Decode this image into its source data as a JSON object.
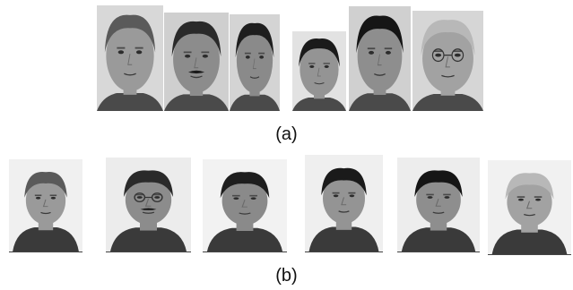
{
  "figure": {
    "panel_a": {
      "caption": "(a)",
      "faces": [
        {
          "subject": 1,
          "hair": "#5a5a5a",
          "skin": "#9a9a9a",
          "bg": "#d8d8d8",
          "mustache": false,
          "glasses": false
        },
        {
          "subject": 2,
          "hair": "#2a2a2a",
          "skin": "#8c8c8c",
          "bg": "#cfcfcf",
          "mustache": true,
          "glasses": false
        },
        {
          "subject": 3,
          "hair": "#1e1e1e",
          "skin": "#8a8a8a",
          "bg": "#d4d4d4",
          "mustache": false,
          "glasses": false
        },
        {
          "subject": 4,
          "hair": "#1a1a1a",
          "skin": "#949494",
          "bg": "#e2e2e2",
          "mustache": false,
          "glasses": false
        },
        {
          "subject": 5,
          "hair": "#151515",
          "skin": "#8e8e8e",
          "bg": "#d0d0d0",
          "mustache": false,
          "glasses": false
        },
        {
          "subject": 6,
          "hair": "#b8b8b8",
          "skin": "#a2a2a2",
          "bg": "#d6d6d6",
          "mustache": false,
          "glasses": true
        }
      ]
    },
    "panel_b": {
      "caption": "(b)",
      "faces": [
        {
          "subject": 1,
          "hair": "#5a5a5a",
          "skin": "#9a9a9a",
          "bg": "#f0f0f0",
          "mustache": false,
          "glasses": false
        },
        {
          "subject": 2,
          "hair": "#2a2a2a",
          "skin": "#8c8c8c",
          "bg": "#ececec",
          "mustache": true,
          "glasses": true
        },
        {
          "subject": 3,
          "hair": "#1e1e1e",
          "skin": "#8a8a8a",
          "bg": "#f2f2f2",
          "mustache": false,
          "glasses": false
        },
        {
          "subject": 4,
          "hair": "#1a1a1a",
          "skin": "#949494",
          "bg": "#efefef",
          "mustache": false,
          "glasses": false
        },
        {
          "subject": 5,
          "hair": "#151515",
          "skin": "#8e8e8e",
          "bg": "#ededed",
          "mustache": false,
          "glasses": false
        },
        {
          "subject": 6,
          "hair": "#b8b8b8",
          "skin": "#a2a2a2",
          "bg": "#f1f1f1",
          "mustache": false,
          "glasses": false
        }
      ]
    }
  }
}
